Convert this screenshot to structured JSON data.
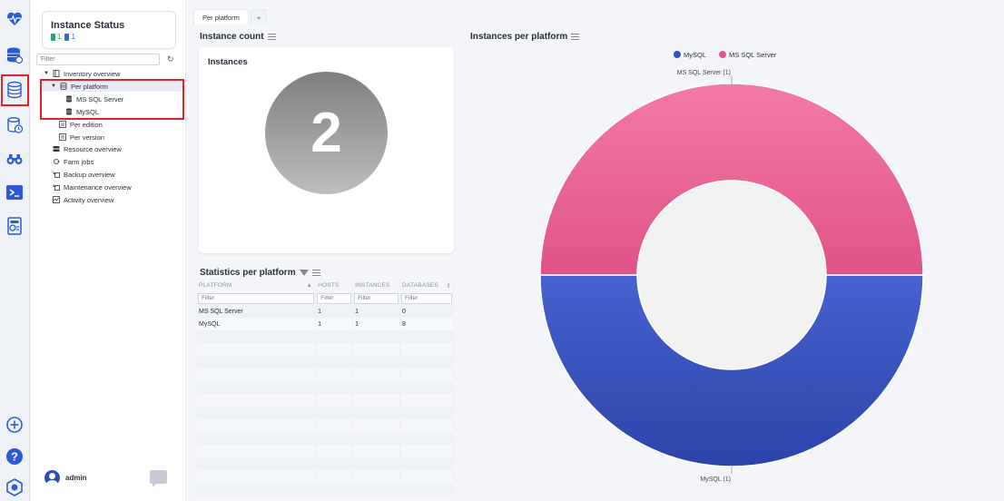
{
  "rail": {
    "icons": [
      "heartbeat-icon",
      "database-gear-icon",
      "database-stack-icon",
      "database-clock-icon",
      "binoculars-icon",
      "terminal-icon",
      "report-icon",
      "plus-circle-icon",
      "help-icon",
      "hexagon-logo-icon"
    ]
  },
  "status_card": {
    "title": "Instance Status",
    "green_count": "1",
    "blue_count": "1"
  },
  "tree": {
    "filter_placeholder": "Filter",
    "items": [
      {
        "label": "Inventory overview"
      },
      {
        "label": "Per platform"
      },
      {
        "label": "MS SQL Server"
      },
      {
        "label": "MySQL"
      },
      {
        "label": "Per edition"
      },
      {
        "label": "Per version"
      },
      {
        "label": "Resource overview"
      },
      {
        "label": "Farm jobs"
      },
      {
        "label": "Backup overview"
      },
      {
        "label": "Maintenance overview"
      },
      {
        "label": "Activity overview"
      }
    ]
  },
  "user": {
    "name": "admin"
  },
  "tabs": [
    {
      "label": "Per platform"
    },
    {
      "label": "+"
    }
  ],
  "instance_count": {
    "title": "Instance count",
    "card_label": "Instances",
    "value": "2"
  },
  "statistics": {
    "title": "Statistics per platform",
    "columns": [
      "PLATFORM",
      "HOSTS",
      "INSTANCES",
      "DATABASES"
    ],
    "filter_placeholder": "Filter",
    "rows": [
      [
        "MS SQL Server",
        "1",
        "1",
        "0"
      ],
      [
        "MySQL",
        "1",
        "1",
        "8"
      ]
    ]
  },
  "chart_data": {
    "type": "pie",
    "title": "Instances per platform",
    "categories": [
      "MySQL",
      "MS SQL Server"
    ],
    "values": [
      1,
      1
    ],
    "slice_labels": [
      "MySQL (1)",
      "MS SQL Server (1)"
    ],
    "colors": [
      "#3553b8",
      "#e8558a"
    ],
    "donut": true,
    "legend": "top-center"
  }
}
